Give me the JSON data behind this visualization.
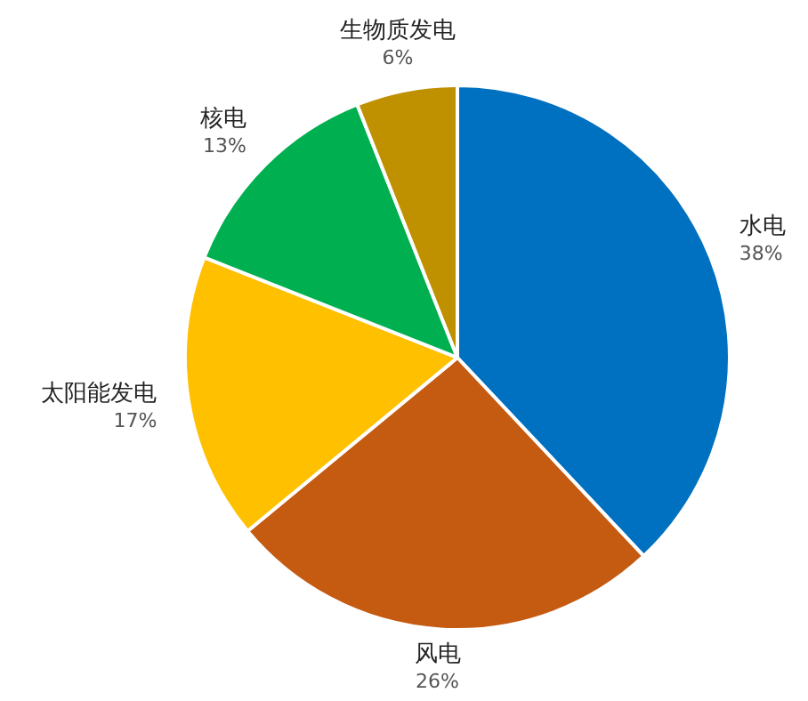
{
  "chart_data": {
    "type": "pie",
    "categories": [
      "水电",
      "风电",
      "太阳能发电",
      "核电",
      "生物质发电"
    ],
    "values": [
      38,
      26,
      17,
      13,
      6
    ],
    "value_labels": [
      "38%",
      "26%",
      "17%",
      "13%",
      "6%"
    ],
    "colors": [
      "#0070c0",
      "#c55a11",
      "#ffc000",
      "#00b050",
      "#bf9000"
    ],
    "legend": false
  }
}
